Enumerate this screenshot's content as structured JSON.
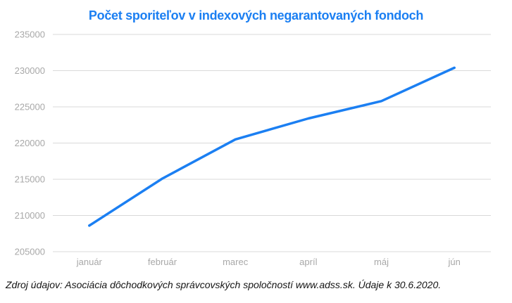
{
  "header": {
    "title": "Počet sporiteľov v indexových negarantovaných fondoch"
  },
  "footer": {
    "source_note": "Zdroj údajov: Asociácia dôchodkových správcovských spoločností www.adss.sk. Údaje k 30.6.2020."
  },
  "colors": {
    "title": "#1b7ff2",
    "line": "#1b7ff2",
    "gridline": "#d9d9d9",
    "axis_label": "#a8a8a8",
    "footer_text": "#141414",
    "background": "#ffffff"
  },
  "chart_data": {
    "type": "line",
    "title": "Počet sporiteľov v indexových negarantovaných fondoch",
    "categories": [
      "január",
      "február",
      "marec",
      "apríl",
      "máj",
      "jún"
    ],
    "series": [
      {
        "name": "Počet sporiteľov",
        "values": [
          208600,
          215100,
          220500,
          223400,
          225800,
          230400
        ]
      }
    ],
    "xlabel": "",
    "ylabel": "",
    "ylim": [
      205000,
      235000
    ],
    "yticks": [
      205000,
      210000,
      215000,
      220000,
      225000,
      230000,
      235000
    ],
    "grid": true,
    "legend_position": "none",
    "annotation": "Zdroj údajov: Asociácia dôchodkových správcovských spoločností www.adss.sk. Údaje k 30.6.2020."
  }
}
